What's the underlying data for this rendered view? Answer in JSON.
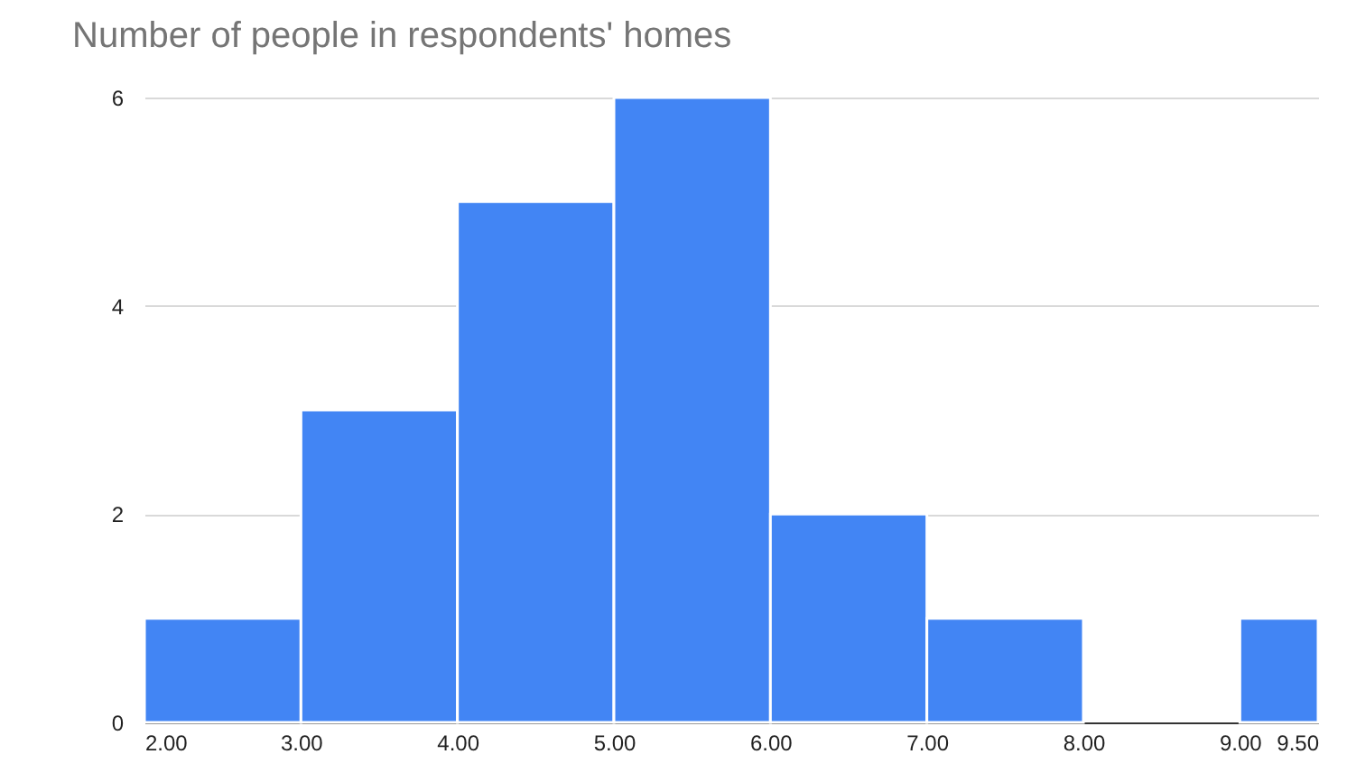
{
  "chart_data": {
    "type": "histogram",
    "title": "Number of people in respondents' homes",
    "bins": [
      2,
      3,
      4,
      5,
      6,
      7,
      8,
      9,
      9.5
    ],
    "values": [
      1,
      3,
      5,
      6,
      2,
      1,
      0,
      1
    ],
    "color": "#4285f4",
    "xlim": [
      2,
      9.5
    ],
    "xticks": [
      {
        "value": 2,
        "label": "2.00"
      },
      {
        "value": 3,
        "label": "3.00"
      },
      {
        "value": 4,
        "label": "4.00"
      },
      {
        "value": 5,
        "label": "5.00"
      },
      {
        "value": 6,
        "label": "6.00"
      },
      {
        "value": 7,
        "label": "7.00"
      },
      {
        "value": 8,
        "label": "8.00"
      },
      {
        "value": 9,
        "label": "9.00"
      },
      {
        "value": 9.5,
        "label": "9.50"
      }
    ],
    "ylim": [
      0,
      6
    ],
    "yticks": [
      0,
      2,
      4,
      6
    ],
    "grid": "y",
    "legend": false
  }
}
